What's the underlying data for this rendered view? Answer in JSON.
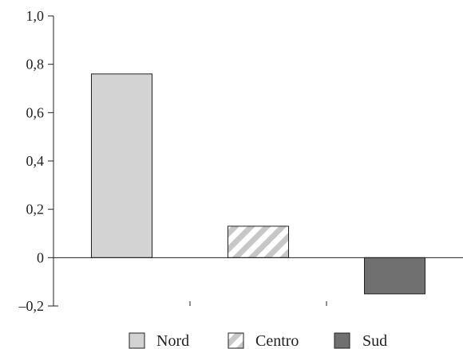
{
  "chart_data": {
    "type": "bar",
    "categories": [
      "Nord",
      "Centro",
      "Sud"
    ],
    "values": [
      0.76,
      0.13,
      -0.15
    ],
    "ylim": [
      -0.2,
      1.0
    ],
    "yticks": [
      1.0,
      0.8,
      0.6,
      0.4,
      0.2,
      0,
      -0.2
    ],
    "ytick_labels": [
      "1,0",
      "0,8",
      "0,6",
      "0,4",
      "0,2",
      "0",
      "–0,2"
    ],
    "grid": false,
    "legend_position": "bottom",
    "legend": [
      {
        "label": "Nord",
        "style": "light-gray"
      },
      {
        "label": "Centro",
        "style": "hatched"
      },
      {
        "label": "Sud",
        "style": "dark-gray"
      }
    ],
    "colors": {
      "Nord": "#d3d3d3",
      "Centro": "#c7c7c7",
      "Sud": "#707070",
      "stroke": "#222222"
    }
  }
}
